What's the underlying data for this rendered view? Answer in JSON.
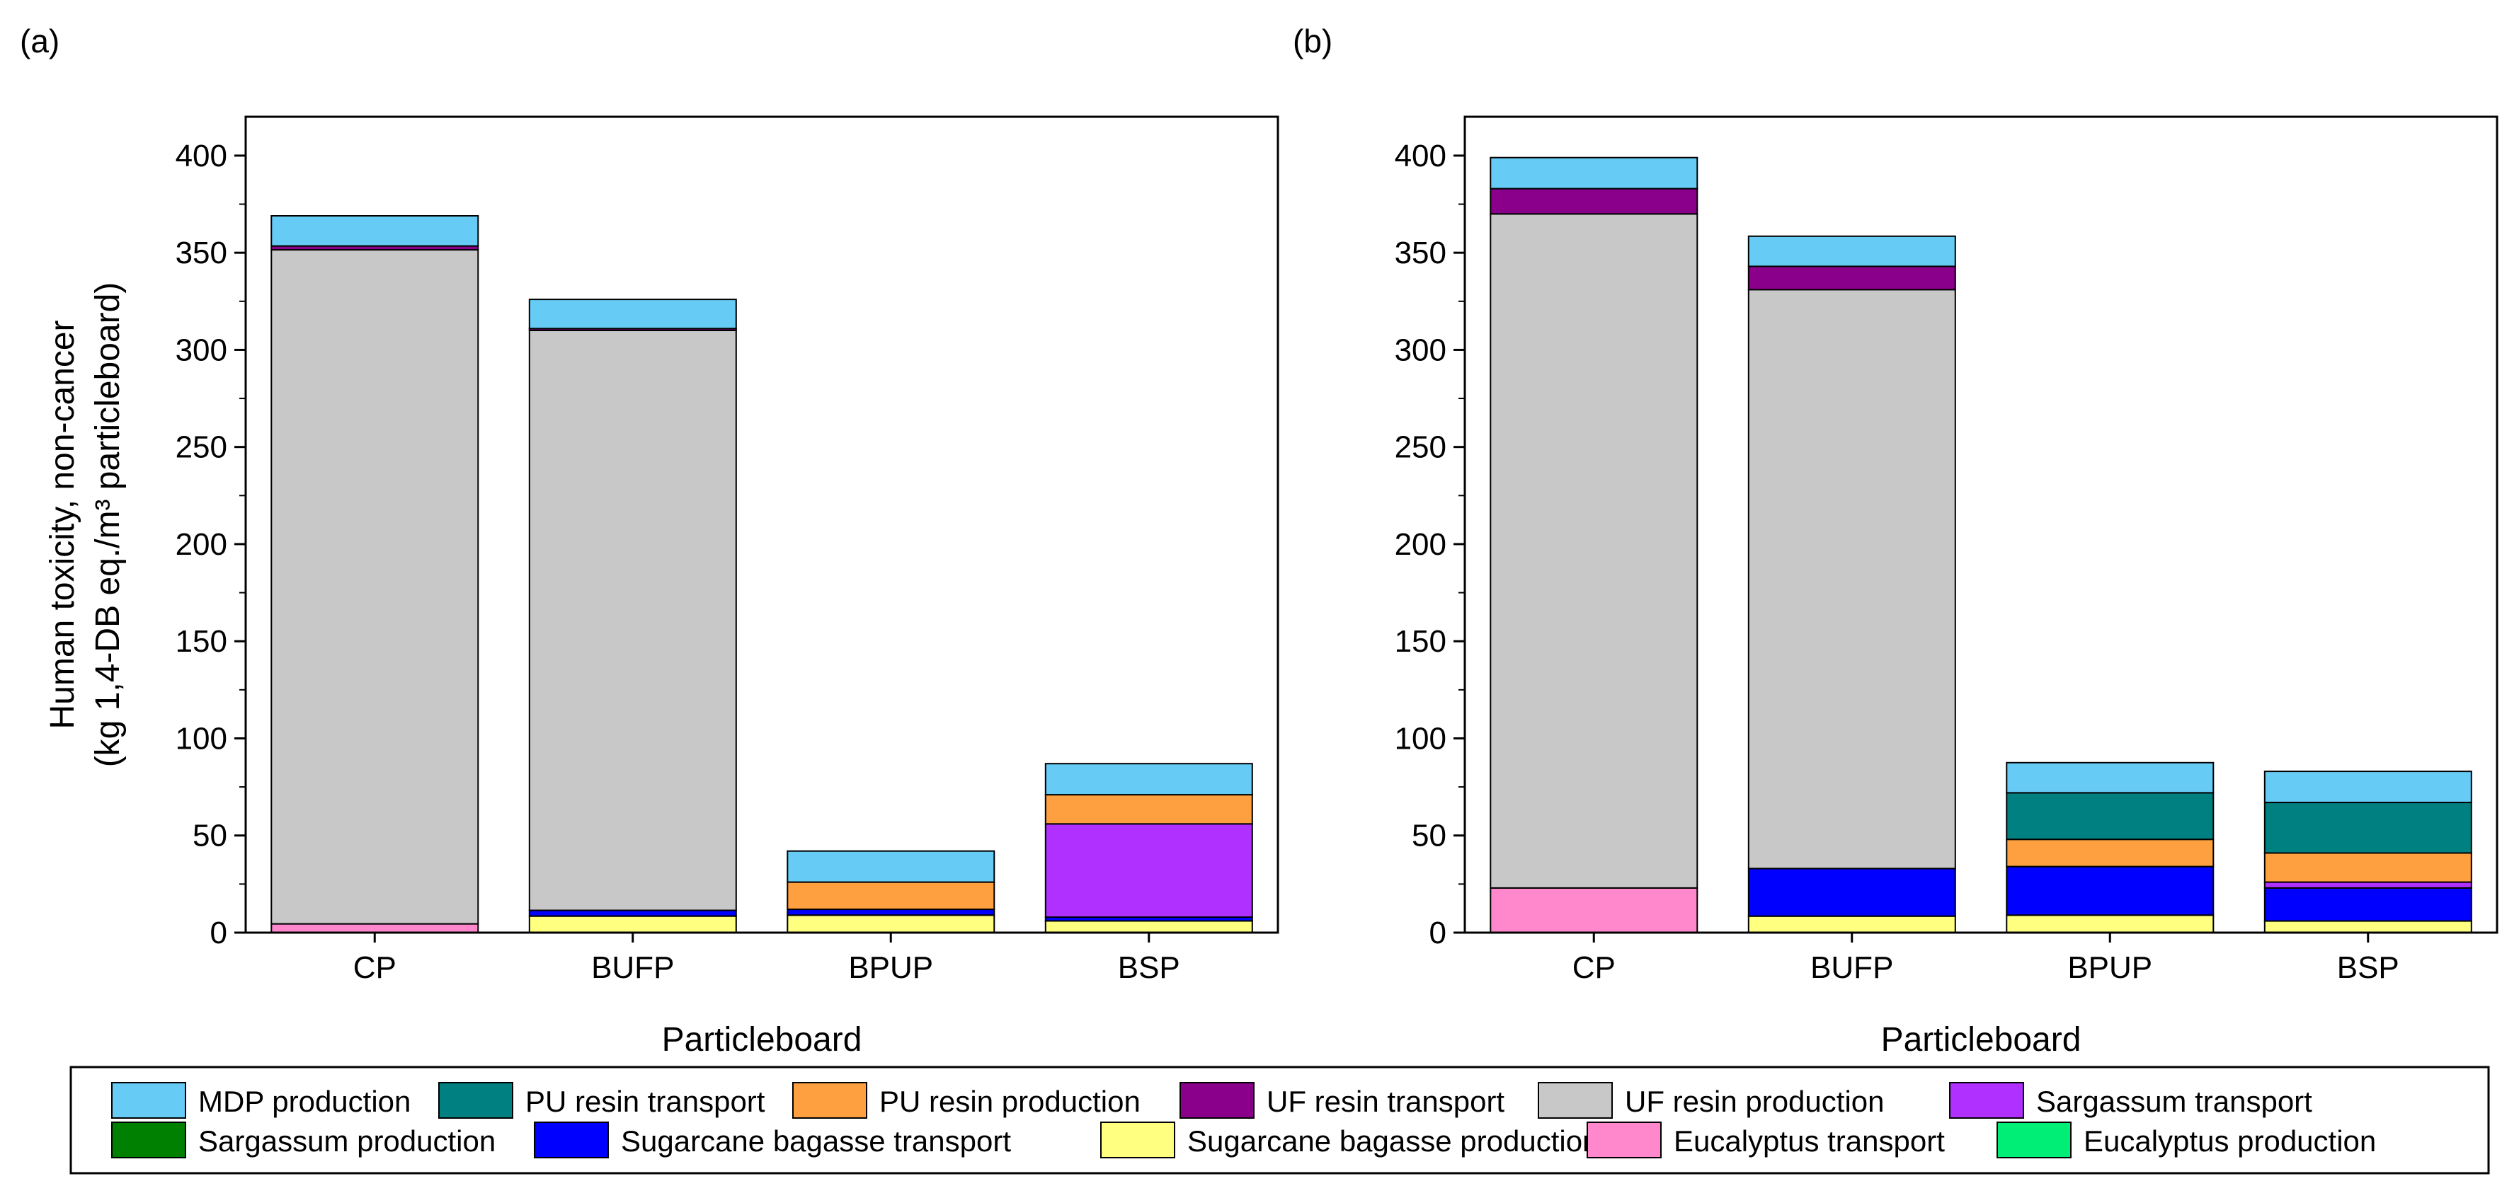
{
  "chart_data": [
    {
      "type": "bar",
      "stacked": true,
      "panel_label": "(a)",
      "categories": [
        "CP",
        "BUFP",
        "BPUP",
        "BSP"
      ],
      "xlabel": "Particleboard",
      "ylabel_line1": "Human toxicity, non-cancer",
      "ylabel_line2": "(kg 1,4-DB eq./m³ particleboard)",
      "ylim": [
        0,
        420
      ],
      "yticks": [
        0,
        50,
        100,
        150,
        200,
        250,
        300,
        350,
        400
      ],
      "grid": false,
      "series": [
        {
          "name": "Eucalyptus production",
          "color": "#00ee76",
          "values": [
            0,
            0,
            0,
            0
          ]
        },
        {
          "name": "Eucalyptus transport",
          "color": "#ff88cc",
          "values": [
            4.5,
            0,
            0,
            0
          ]
        },
        {
          "name": "Sugarcane bagasse production",
          "color": "#ffff80",
          "values": [
            0,
            8.5,
            9,
            6
          ]
        },
        {
          "name": "Sugarcane bagasse transport",
          "color": "#0000ff",
          "values": [
            0,
            3,
            3,
            2
          ]
        },
        {
          "name": "Sargassum production",
          "color": "#008000",
          "values": [
            0,
            0,
            0,
            0
          ]
        },
        {
          "name": "Sargassum transport",
          "color": "#b030ff",
          "values": [
            0,
            0,
            0,
            48
          ]
        },
        {
          "name": "UF resin production",
          "color": "#c8c8c8",
          "values": [
            347,
            298.5,
            0,
            0
          ]
        },
        {
          "name": "UF resin transport",
          "color": "#8b008b",
          "values": [
            2,
            1,
            0,
            0
          ]
        },
        {
          "name": "PU resin production",
          "color": "#ffa040",
          "values": [
            0,
            0,
            14,
            15
          ]
        },
        {
          "name": "PU resin transport",
          "color": "#008080",
          "values": [
            0,
            0,
            0,
            0
          ]
        },
        {
          "name": "MDP production",
          "color": "#66ccf5",
          "values": [
            15.5,
            15,
            16,
            16
          ]
        }
      ]
    },
    {
      "type": "bar",
      "stacked": true,
      "panel_label": "(b)",
      "categories": [
        "CP",
        "BUFP",
        "BPUP",
        "BSP"
      ],
      "xlabel": "Particleboard",
      "ylim": [
        0,
        420
      ],
      "yticks": [
        0,
        50,
        100,
        150,
        200,
        250,
        300,
        350,
        400
      ],
      "grid": false,
      "series": [
        {
          "name": "Eucalyptus production",
          "color": "#00ee76",
          "values": [
            0,
            0,
            0,
            0
          ]
        },
        {
          "name": "Eucalyptus transport",
          "color": "#ff88cc",
          "values": [
            23,
            0,
            0,
            0
          ]
        },
        {
          "name": "Sugarcane bagasse production",
          "color": "#ffff80",
          "values": [
            0,
            8.5,
            9,
            6
          ]
        },
        {
          "name": "Sugarcane bagasse transport",
          "color": "#0000ff",
          "values": [
            0,
            24.5,
            25,
            17
          ]
        },
        {
          "name": "Sargassum production",
          "color": "#008000",
          "values": [
            0,
            0,
            0,
            0
          ]
        },
        {
          "name": "Sargassum transport",
          "color": "#b030ff",
          "values": [
            0,
            0,
            0,
            3
          ]
        },
        {
          "name": "UF resin production",
          "color": "#c8c8c8",
          "values": [
            347,
            298,
            0,
            0
          ]
        },
        {
          "name": "UF resin transport",
          "color": "#8b008b",
          "values": [
            13,
            12,
            0,
            0
          ]
        },
        {
          "name": "PU resin production",
          "color": "#ffa040",
          "values": [
            0,
            0,
            14,
            15
          ]
        },
        {
          "name": "PU resin transport",
          "color": "#008080",
          "values": [
            0,
            0,
            24,
            26
          ]
        },
        {
          "name": "MDP production",
          "color": "#66ccf5",
          "values": [
            16,
            15.5,
            15.5,
            16
          ]
        }
      ]
    }
  ],
  "legend": {
    "placement": "bottom",
    "entries": [
      {
        "label": "MDP production",
        "color": "#66ccf5"
      },
      {
        "label": "PU resin transport",
        "color": "#008080"
      },
      {
        "label": "PU resin production",
        "color": "#ffa040"
      },
      {
        "label": "UF resin transport",
        "color": "#8b008b"
      },
      {
        "label": "UF resin production",
        "color": "#c8c8c8"
      },
      {
        "label": "Sargassum transport",
        "color": "#b030ff"
      },
      {
        "label": "Sargassum production",
        "color": "#008000"
      },
      {
        "label": "Sugarcane bagasse transport",
        "color": "#0000ff"
      },
      {
        "label": "Sugarcane bagasse production",
        "color": "#ffff80"
      },
      {
        "label": "Eucalyptus transport",
        "color": "#ff88cc"
      },
      {
        "label": "Eucalyptus production",
        "color": "#00ee76"
      }
    ]
  }
}
